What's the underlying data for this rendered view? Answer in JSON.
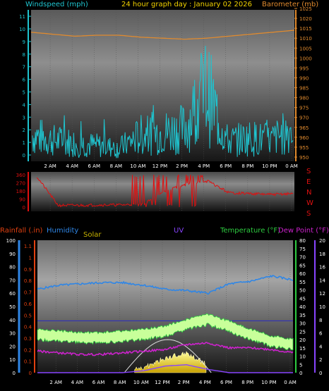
{
  "header": {
    "left_title": "Windspeed (mph)",
    "center_title": "24 hour graph day : January 02 2026",
    "right_title": "Barometer (mb)"
  },
  "x_labels": [
    "2 AM",
    "4 AM",
    "6 AM",
    "8 AM",
    "10 AM",
    "12 PM",
    "2 PM",
    "4 PM",
    "6 PM",
    "8 PM",
    "10 PM",
    "0 AM"
  ],
  "colors": {
    "wind": "#1fc4cf",
    "baro": "#e08a2e",
    "dir": "#e01010",
    "humidity": "#2f86e6",
    "temp": "#2ecc40",
    "dew": "#cc22cc",
    "solar": "#f0e68c",
    "uv": "#8844ff",
    "rain": "#e04010"
  },
  "wind_chart": {
    "left_ticks": [
      "0",
      "1",
      "2",
      "3",
      "4",
      "5",
      "6",
      "7",
      "8",
      "9",
      "10",
      "11"
    ],
    "right_ticks": [
      "950",
      "955",
      "960",
      "965",
      "970",
      "975",
      "980",
      "985",
      "990",
      "995",
      "1000",
      "1005",
      "1010",
      "1015",
      "1020",
      "1025"
    ]
  },
  "direction_chart": {
    "left_ticks": [
      "0",
      "90",
      "180",
      "270",
      "360"
    ],
    "right_labels": [
      "S",
      "E",
      "N",
      "W",
      "S"
    ]
  },
  "bottom_chart": {
    "titles": {
      "rain": "Rainfall (.in)",
      "humidity": "Humidity",
      "solar": "Solar",
      "uv": "UV",
      "temp": "Temperature (°F)",
      "dew": "Dew Point (°F)"
    },
    "humidity_ticks": [
      "0",
      "10",
      "20",
      "30",
      "40",
      "50",
      "60",
      "70",
      "80",
      "90",
      "100"
    ],
    "rain_ticks": [
      "0",
      "0.1",
      "0.2",
      "0.3",
      "0.4",
      "0.5",
      "0.6",
      "0.7",
      "0.8",
      "0.9",
      "1",
      "1.1"
    ],
    "temp_ticks": [
      "0",
      "5",
      "10",
      "15",
      "20",
      "25",
      "30",
      "35",
      "40",
      "45",
      "50",
      "55",
      "60",
      "65",
      "70",
      "75",
      "80"
    ],
    "uv_ticks": [
      "0",
      "2",
      "4",
      "6",
      "8",
      "10",
      "12",
      "14",
      "16",
      "18",
      "20"
    ]
  },
  "chart_data": [
    {
      "type": "line",
      "title": "24 hour graph day : January 02 2026",
      "x": [
        "0 AM",
        "2 AM",
        "4 AM",
        "6 AM",
        "8 AM",
        "10 AM",
        "12 PM",
        "2 PM",
        "4 PM",
        "6 PM",
        "8 PM",
        "10 PM",
        "0 AM"
      ],
      "series": [
        {
          "name": "Windspeed (mph)",
          "axis": "left",
          "ylim": [
            0,
            11
          ],
          "values": [
            2.0,
            1.6,
            1.4,
            1.2,
            1.0,
            2.0,
            2.2,
            2.5,
            5.5,
            1.5,
            1.8,
            1.6,
            2.5
          ]
        },
        {
          "name": "Barometer (mb)",
          "axis": "right",
          "ylim": [
            950,
            1025
          ],
          "values": [
            1013,
            1012,
            1011,
            1011.5,
            1011.5,
            1010.5,
            1010,
            1009.5,
            1010,
            1011,
            1012,
            1013,
            1014
          ]
        }
      ]
    },
    {
      "type": "scatter",
      "title": "Wind direction",
      "x": [
        "0 AM",
        "2 AM",
        "4 AM",
        "6 AM",
        "8 AM",
        "10 AM",
        "12 PM",
        "2 PM",
        "4 PM",
        "6 PM",
        "8 PM",
        "10 PM",
        "0 AM"
      ],
      "series": [
        {
          "name": "Wind direction",
          "ylim": [
            0,
            360
          ],
          "values": [
            340,
            20,
            20,
            25,
            25,
            35,
            180,
            250,
            290,
            160,
            150,
            140,
            150
          ]
        }
      ]
    },
    {
      "type": "line",
      "x": [
        "0 AM",
        "2 AM",
        "4 AM",
        "6 AM",
        "8 AM",
        "10 AM",
        "12 PM",
        "2 PM",
        "4 PM",
        "6 PM",
        "8 PM",
        "10 PM",
        "0 AM"
      ],
      "series": [
        {
          "name": "Humidity",
          "axis": "humidity",
          "ylim": [
            0,
            100
          ],
          "values": [
            63,
            66,
            67,
            68,
            68,
            66,
            63,
            62,
            60,
            67,
            69,
            73,
            70
          ]
        },
        {
          "name": "Temperature (°F)",
          "axis": "temp",
          "ylim": [
            0,
            80
          ],
          "values": [
            24,
            23,
            22,
            22,
            23,
            24,
            26,
            30,
            33,
            29,
            24,
            20,
            18
          ]
        },
        {
          "name": "Dew Point (°F)",
          "axis": "temp",
          "ylim": [
            0,
            80
          ],
          "values": [
            13,
            12,
            11,
            11,
            12,
            13,
            14,
            17,
            18,
            15,
            15,
            14,
            12
          ]
        },
        {
          "name": "Solar",
          "axis": "humidity",
          "ylim": [
            0,
            100
          ],
          "values": [
            0,
            0,
            0,
            0,
            0,
            3,
            10,
            14,
            5,
            0,
            0,
            0,
            0
          ]
        },
        {
          "name": "UV",
          "axis": "uv",
          "ylim": [
            0,
            20
          ],
          "values": [
            0,
            0,
            0,
            0,
            0,
            0.3,
            1.0,
            1.2,
            0.5,
            0,
            0,
            0,
            0
          ]
        },
        {
          "name": "Rainfall (.in)",
          "axis": "rain",
          "ylim": [
            0,
            1.15
          ],
          "values": [
            0.45,
            0.45,
            0.45,
            0.45,
            0.45,
            0.45,
            0.45,
            0.45,
            0.45,
            0.45,
            0.45,
            0.45,
            0.45
          ]
        }
      ]
    }
  ]
}
